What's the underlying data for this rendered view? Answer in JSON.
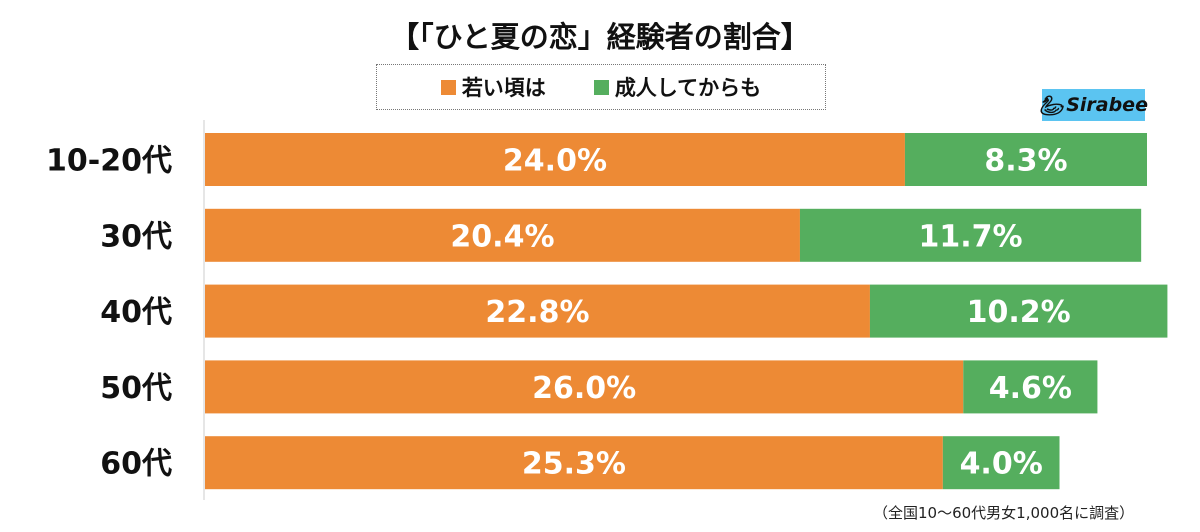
{
  "chart_data": {
    "type": "bar",
    "orientation": "horizontal",
    "stacked": true,
    "title": "【「ひと夏の恋」経験者の割合】",
    "categories": [
      "10-20代",
      "30代",
      "40代",
      "50代",
      "60代"
    ],
    "series": [
      {
        "name": "若い頃は",
        "color": "#ED8A35",
        "values": [
          24.0,
          20.4,
          22.8,
          26.0,
          25.3
        ]
      },
      {
        "name": "成人してからも",
        "color": "#55AE5E",
        "values": [
          8.3,
          11.7,
          10.2,
          4.6,
          4.0
        ]
      }
    ],
    "value_suffix": "%",
    "xlim": [
      0,
      32.3
    ],
    "grid": false,
    "legend_position": "top",
    "note": "（全国10〜60代男女1,000名に調査）"
  },
  "logo": {
    "text": "Sirabee",
    "color": "#5BC4F1"
  }
}
